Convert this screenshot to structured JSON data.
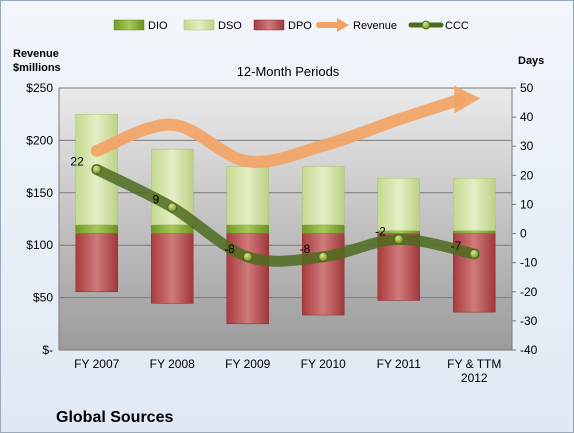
{
  "company": "Global Sources",
  "chart_data": {
    "type": "bar",
    "title": "12-Month Periods",
    "left_axis_label": [
      "Revenue",
      "$millions"
    ],
    "right_axis_label": "Days",
    "left_ticks": [
      "$250",
      "$200",
      "$150",
      "$100",
      "$50",
      "$-"
    ],
    "right_ticks": [
      "50",
      "40",
      "30",
      "20",
      "10",
      "0",
      "-10",
      "-20",
      "-30",
      "-40"
    ],
    "left_ylim": [
      0,
      250
    ],
    "right_ylim": [
      -40,
      50
    ],
    "categories": [
      "FY 2007",
      "FY 2008",
      "FY 2009",
      "FY 2010",
      "FY 2011",
      "FY & TTM 2012"
    ],
    "series": [
      {
        "name": "DIO",
        "values": [
          3,
          3,
          3,
          3,
          1,
          1
        ]
      },
      {
        "name": "DSO",
        "values": [
          38,
          26,
          20,
          20,
          18,
          18
        ]
      },
      {
        "name": "DPO",
        "values": [
          -20,
          -24,
          -31,
          -28,
          -23,
          -27
        ]
      },
      {
        "name": "Revenue",
        "values": [
          190,
          215,
          180,
          195,
          220,
          240
        ]
      },
      {
        "name": "CCC",
        "values": [
          22,
          9,
          -8,
          -8,
          -2,
          -7
        ]
      }
    ],
    "ccc_labels": [
      "22",
      "9",
      "-8",
      "-8",
      "-2",
      "-7"
    ],
    "colors": {
      "DIO": "#8fb33c",
      "DSO": "#cfe0a3",
      "DPO": "#b6474a",
      "Revenue": "#f0a060",
      "CCC": "#5a7a2a"
    }
  }
}
